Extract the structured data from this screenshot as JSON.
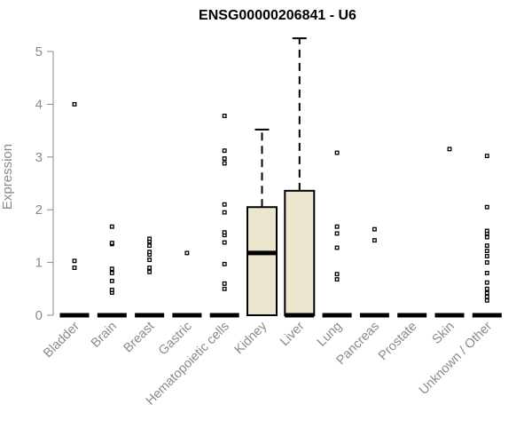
{
  "chart_data": {
    "type": "box",
    "title": "ENSG00000206841 - U6",
    "ylabel": "Expression",
    "xlabel": "",
    "ylim": [
      0,
      5.3
    ],
    "yticks": [
      0,
      1,
      2,
      3,
      4,
      5
    ],
    "colors": {
      "box_fill": "#ede6cf",
      "axis": "#8a8a8a",
      "mark": "#000000"
    },
    "categories": [
      "Bladder",
      "Brain",
      "Breast",
      "Gastric",
      "Hematopoietic cells",
      "Kidney",
      "Liver",
      "Lung",
      "Pancreas",
      "Prostate",
      "Skin",
      "Unknown / Other"
    ],
    "boxes": [
      {
        "category": "Bladder",
        "q1": 0,
        "median": 0,
        "q3": 0,
        "whisker_low": 0,
        "whisker_high": 0,
        "outliers": [
          0.9,
          1.03,
          4.0
        ]
      },
      {
        "category": "Brain",
        "q1": 0,
        "median": 0,
        "q3": 0,
        "whisker_low": 0,
        "whisker_high": 0,
        "outliers": [
          0.43,
          0.48,
          0.65,
          0.8,
          0.88,
          1.35,
          1.37,
          1.68
        ]
      },
      {
        "category": "Breast",
        "q1": 0,
        "median": 0,
        "q3": 0,
        "whisker_low": 0,
        "whisker_high": 0,
        "outliers": [
          0.82,
          0.9,
          1.05,
          1.15,
          1.2,
          1.32,
          1.4,
          1.45
        ]
      },
      {
        "category": "Gastric",
        "q1": 0,
        "median": 0,
        "q3": 0,
        "whisker_low": 0,
        "whisker_high": 0,
        "outliers": [
          1.18
        ]
      },
      {
        "category": "Hematopoietic cells",
        "q1": 0,
        "median": 0,
        "q3": 0,
        "whisker_low": 0,
        "whisker_high": 0,
        "outliers": [
          0.5,
          0.6,
          0.97,
          1.38,
          1.52,
          1.57,
          1.95,
          2.1,
          2.88,
          2.97,
          3.12,
          3.78
        ]
      },
      {
        "category": "Kidney",
        "q1": 0,
        "median": 1.18,
        "q3": 2.05,
        "whisker_low": 0,
        "whisker_high": 3.52,
        "outliers": []
      },
      {
        "category": "Liver",
        "q1": 0,
        "median": 0,
        "q3": 2.36,
        "whisker_low": 0,
        "whisker_high": 5.25,
        "outliers": []
      },
      {
        "category": "Lung",
        "q1": 0,
        "median": 0,
        "q3": 0,
        "whisker_low": 0,
        "whisker_high": 0,
        "outliers": [
          0.68,
          0.78,
          1.28,
          1.55,
          1.68,
          3.08
        ]
      },
      {
        "category": "Pancreas",
        "q1": 0,
        "median": 0,
        "q3": 0,
        "whisker_low": 0,
        "whisker_high": 0,
        "outliers": [
          1.42,
          1.63
        ]
      },
      {
        "category": "Prostate",
        "q1": 0,
        "median": 0,
        "q3": 0,
        "whisker_low": 0,
        "whisker_high": 0,
        "outliers": []
      },
      {
        "category": "Skin",
        "q1": 0,
        "median": 0,
        "q3": 0,
        "whisker_low": 0,
        "whisker_high": 0,
        "outliers": [
          3.15
        ]
      },
      {
        "category": "Unknown / Other",
        "q1": 0,
        "median": 0,
        "q3": 0,
        "whisker_low": 0,
        "whisker_high": 0,
        "outliers": [
          0.28,
          0.35,
          0.42,
          0.5,
          0.62,
          0.8,
          1.0,
          1.12,
          1.22,
          1.32,
          1.48,
          1.55,
          1.6,
          2.05,
          3.02
        ]
      }
    ]
  }
}
